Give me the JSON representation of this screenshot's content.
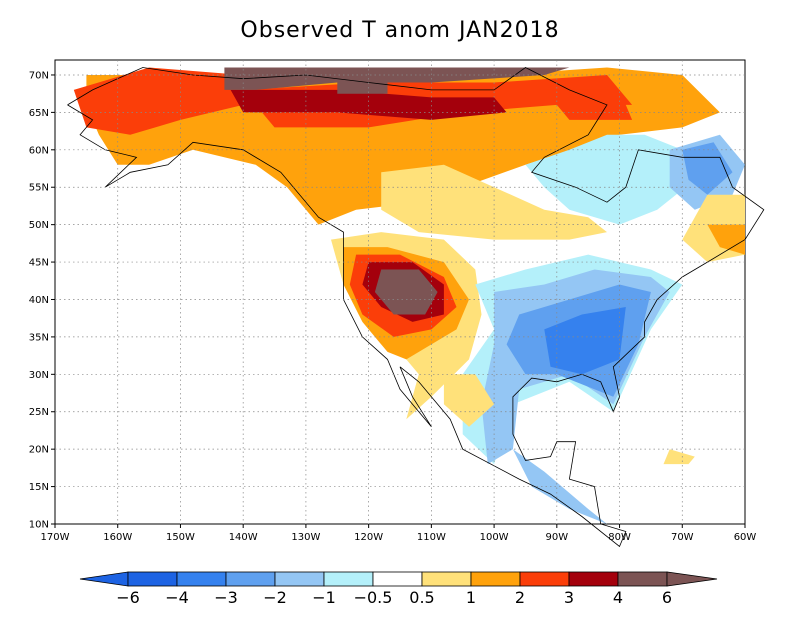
{
  "title": "Observed T anom JAN2018",
  "map": {
    "lon_range": [
      -170,
      -60
    ],
    "lat_range": [
      10,
      72
    ],
    "lat_ticks": [
      {
        "value": 70,
        "label": "70N"
      },
      {
        "value": 65,
        "label": "65N"
      },
      {
        "value": 60,
        "label": "60N"
      },
      {
        "value": 55,
        "label": "55N"
      },
      {
        "value": 50,
        "label": "50N"
      },
      {
        "value": 45,
        "label": "45N"
      },
      {
        "value": 40,
        "label": "40N"
      },
      {
        "value": 35,
        "label": "35N"
      },
      {
        "value": 30,
        "label": "30N"
      },
      {
        "value": 25,
        "label": "25N"
      },
      {
        "value": 20,
        "label": "20N"
      },
      {
        "value": 15,
        "label": "15N"
      },
      {
        "value": 10,
        "label": "10N"
      }
    ],
    "lon_ticks": [
      {
        "value": -170,
        "label": "170W"
      },
      {
        "value": -160,
        "label": "160W"
      },
      {
        "value": -150,
        "label": "150W"
      },
      {
        "value": -140,
        "label": "140W"
      },
      {
        "value": -130,
        "label": "130W"
      },
      {
        "value": -120,
        "label": "120W"
      },
      {
        "value": -110,
        "label": "110W"
      },
      {
        "value": -100,
        "label": "100W"
      },
      {
        "value": -90,
        "label": "90W"
      },
      {
        "value": -80,
        "label": "80W"
      },
      {
        "value": -70,
        "label": "70W"
      },
      {
        "value": -60,
        "label": "60W"
      }
    ],
    "grid": "dotted"
  },
  "colorbar": {
    "labels": [
      "−6",
      "−4",
      "−3",
      "−2",
      "−1",
      "−0.5",
      "0.5",
      "1",
      "2",
      "3",
      "4",
      "6"
    ],
    "colors": [
      "#1d63e3",
      "#3581ee",
      "#5fa0ef",
      "#94c6f4",
      "#b4f0fa",
      "#ffffff",
      "#ffe17a",
      "#ffa20c",
      "#fb3e09",
      "#a4000c",
      "#7c5454"
    ],
    "left_arrow_color": "#1d63e3",
    "right_arrow_color": "#7c5454"
  }
}
